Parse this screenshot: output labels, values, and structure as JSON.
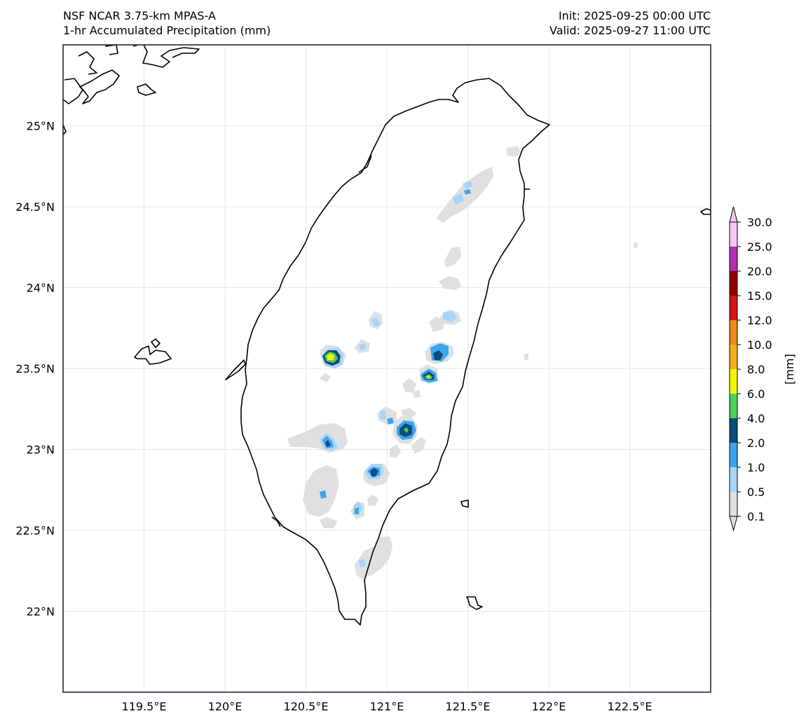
{
  "header": {
    "model": "NSF NCAR 3.75-km MPAS-A",
    "field": "1-hr Accumulated Precipitation (mm)",
    "init": "Init: 2025-09-25 00:00 UTC",
    "valid": "Valid: 2025-09-27 11:00 UTC"
  },
  "map": {
    "lon_range": [
      119.0,
      123.0
    ],
    "lat_range": [
      21.5,
      25.5
    ],
    "grid": true,
    "lon_ticks": [
      119.5,
      120.0,
      120.5,
      121.0,
      121.5,
      122.0,
      122.5
    ],
    "lon_tick_labels": [
      "119.5°E",
      "120°E",
      "120.5°E",
      "121°E",
      "121.5°E",
      "122°E",
      "122.5°E"
    ],
    "lat_ticks": [
      22.0,
      22.5,
      23.0,
      23.5,
      24.0,
      24.5,
      25.0
    ],
    "lat_tick_labels": [
      "22°N",
      "22.5°N",
      "23°N",
      "23.5°N",
      "24°N",
      "24.5°N",
      "25°N"
    ]
  },
  "colorbar": {
    "unit_label": "[mm]",
    "levels": [
      "0.1",
      "0.5",
      "1.0",
      "2.0",
      "4.0",
      "6.0",
      "8.0",
      "10.0",
      "12.0",
      "15.0",
      "20.0",
      "25.0",
      "30.0"
    ],
    "colors": [
      "#e0e0e0",
      "#a6d4fa",
      "#3aa6f0",
      "#0e4d7a",
      "#4cd05a",
      "#f4f400",
      "#f0b020",
      "#e88a20",
      "#d01818",
      "#900000",
      "#b030b0",
      "#f4c8f4"
    ]
  },
  "precip_cells": [
    {
      "lon": 120.65,
      "lat": 23.57,
      "max_mm": 8.0
    },
    {
      "lon": 121.27,
      "lat": 23.44,
      "max_mm": 6.0
    },
    {
      "lon": 121.31,
      "lat": 23.58,
      "max_mm": 4.0
    },
    {
      "lon": 121.12,
      "lat": 23.11,
      "max_mm": 6.0
    },
    {
      "lon": 120.92,
      "lat": 22.87,
      "max_mm": 4.0
    },
    {
      "lon": 120.66,
      "lat": 23.03,
      "max_mm": 4.0
    },
    {
      "lon": 121.46,
      "lat": 24.62,
      "max_mm": 1.0
    },
    {
      "lon": 121.36,
      "lat": 23.81,
      "max_mm": 1.0
    },
    {
      "lon": 120.82,
      "lat": 22.62,
      "max_mm": 1.0
    },
    {
      "lon": 120.98,
      "lat": 23.19,
      "max_mm": 1.0
    },
    {
      "lon": 120.86,
      "lat": 23.65,
      "max_mm": 1.0
    },
    {
      "lon": 120.92,
      "lat": 23.78,
      "max_mm": 1.0
    }
  ]
}
